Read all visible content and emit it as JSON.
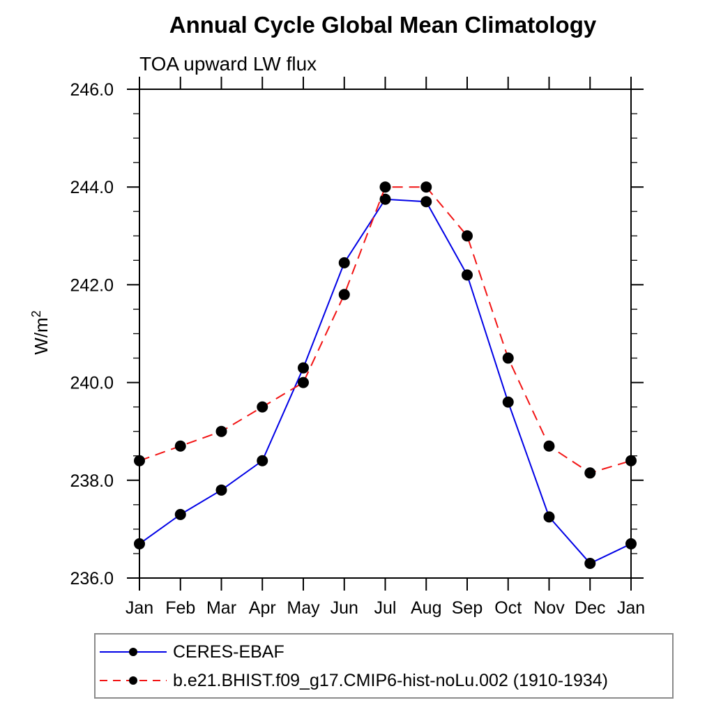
{
  "chart_data": {
    "type": "line",
    "title": "Annual Cycle Global Mean Climatology",
    "subtitle": "TOA upward LW flux",
    "ylabel": "W/m2",
    "ylabel_base": "W/m",
    "ylabel_sup": "2",
    "categories": [
      "Jan",
      "Feb",
      "Mar",
      "Apr",
      "May",
      "Jun",
      "Jul",
      "Aug",
      "Sep",
      "Oct",
      "Nov",
      "Dec",
      "Jan"
    ],
    "ylim": [
      236.0,
      246.0
    ],
    "ytick_major_step": 2.0,
    "ytick_minor_step": 0.5,
    "ytick_labels": [
      "236.0",
      "238.0",
      "240.0",
      "242.0",
      "244.0",
      "246.0"
    ],
    "grid": false,
    "legend_position": "bottom-left",
    "frame_color": "#000000",
    "marker": "filled-circle",
    "marker_color": "#000000",
    "series": [
      {
        "name": "CERES-EBAF",
        "color": "#0000e6",
        "style": "solid",
        "values": [
          236.7,
          237.3,
          237.8,
          238.4,
          240.3,
          242.45,
          243.75,
          243.7,
          242.2,
          239.6,
          237.25,
          236.3,
          236.7
        ]
      },
      {
        "name": "b.e21.BHIST.f09_g17.CMIP6-hist-noLu.002 (1910-1934)",
        "color": "#f21414",
        "style": "dashed",
        "values": [
          238.4,
          238.7,
          239.0,
          239.5,
          240.0,
          241.8,
          244.0,
          244.0,
          243.0,
          240.5,
          238.7,
          238.15,
          238.4
        ]
      }
    ]
  }
}
